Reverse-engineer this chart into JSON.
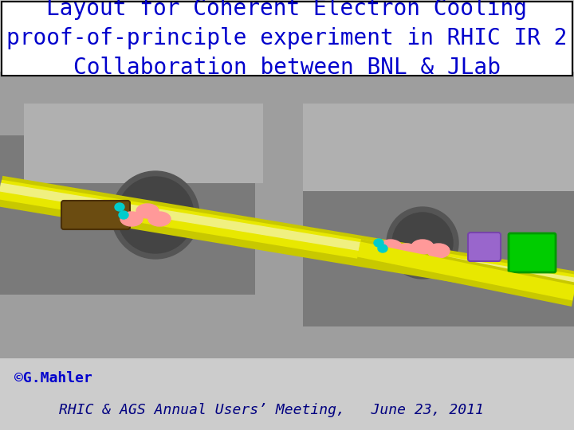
{
  "title_line1": "Layout for Coherent Electron Cooling",
  "title_line2": "proof-of-principle experiment in RHIC IR 2",
  "title_line3": "Collaboration between BNL & JLab",
  "title_color": "#0000CC",
  "title_fontsize": 20,
  "credit_text": "©G.Mahler",
  "credit_color": "#0000CC",
  "credit_fontsize": 13,
  "footer_text": "RHIC & AGS Annual Users’ Meeting,   June 23, 2011",
  "footer_color": "#000080",
  "footer_fontsize": 13,
  "title_box_bg": "#FFFFFF",
  "title_box_edge": "#000000",
  "bg_color": "#C8C8C8",
  "fig_width": 7.2,
  "fig_height": 5.4,
  "dpi": 100
}
